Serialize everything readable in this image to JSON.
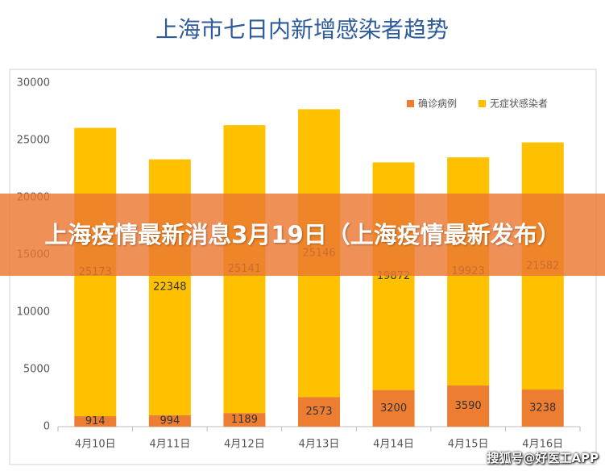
{
  "chart_data": {
    "type": "stacked_bar",
    "title": "上海市七日内新增感染者趋势",
    "categories": [
      "4月10日",
      "4月11日",
      "4月12日",
      "4月13日",
      "4月14日",
      "4月15日",
      "4月16日"
    ],
    "series": [
      {
        "name": "确诊病例",
        "color": "#ed7d31",
        "values": [
          914,
          994,
          1189,
          2573,
          3200,
          3590,
          3238
        ]
      },
      {
        "name": "无症状感染者",
        "color": "#ffc000",
        "values": [
          25173,
          22348,
          25141,
          25146,
          19872,
          19923,
          21582
        ]
      }
    ],
    "ylim": [
      0,
      30000
    ],
    "yticks": [
      0,
      5000,
      10000,
      15000,
      20000,
      25000,
      30000
    ],
    "legend": "top-right"
  },
  "banner": "上海疫情最新消息3月19日（上海疫情最新发布）",
  "watermark": "搜狐号@好医工APP"
}
